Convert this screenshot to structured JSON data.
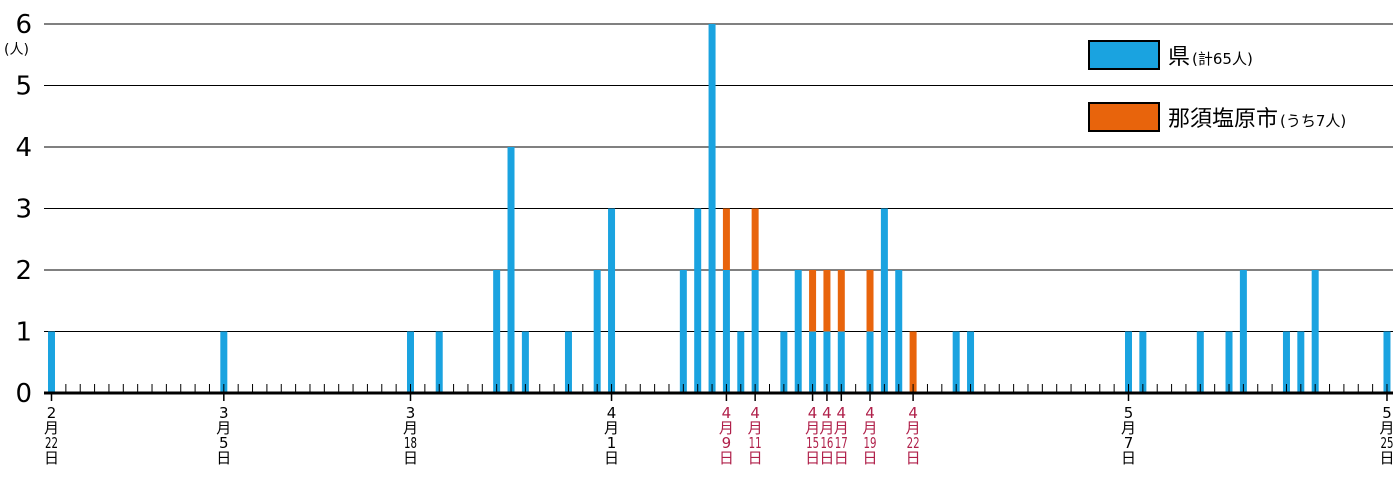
{
  "colors": {
    "prefecture": "#1aa3e0",
    "city": "#e8640c",
    "axis": "#000000",
    "grid": "#000000",
    "label_default": "#000000",
    "label_highlight": "#b0204a"
  },
  "legend": [
    {
      "name": "県",
      "sub": "(計65人)",
      "color": "#1aa3e0"
    },
    {
      "name": "那須塩原市",
      "sub": "(うち7人)",
      "color": "#e8640c"
    }
  ],
  "chart_data": {
    "type": "bar",
    "stacked": true,
    "ylabel": "(人)",
    "ylim": [
      0,
      6
    ],
    "yticks": [
      "0",
      "1",
      "2",
      "3",
      "4",
      "5",
      "6"
    ],
    "grid": true,
    "legend_position": "top-right",
    "x_start": "2月22日",
    "x_end": "5月25日",
    "series": [
      {
        "name": "県",
        "points": [
          [
            0,
            1
          ],
          [
            12,
            1
          ],
          [
            25,
            1
          ],
          [
            27,
            1
          ],
          [
            31,
            2
          ],
          [
            32,
            4
          ],
          [
            33,
            1
          ],
          [
            36,
            1
          ],
          [
            38,
            2
          ],
          [
            39,
            3
          ],
          [
            44,
            2
          ],
          [
            45,
            3
          ],
          [
            46,
            6
          ],
          [
            47,
            2
          ],
          [
            48,
            1
          ],
          [
            49,
            2
          ],
          [
            51,
            1
          ],
          [
            52,
            2
          ],
          [
            53,
            1
          ],
          [
            54,
            1
          ],
          [
            55,
            1
          ],
          [
            57,
            1
          ],
          [
            58,
            3
          ],
          [
            59,
            2
          ],
          [
            63,
            1
          ],
          [
            64,
            1
          ],
          [
            75,
            1
          ],
          [
            76,
            1
          ],
          [
            80,
            1
          ],
          [
            82,
            1
          ],
          [
            83,
            2
          ],
          [
            86,
            1
          ],
          [
            87,
            1
          ],
          [
            88,
            2
          ],
          [
            93,
            1
          ]
        ]
      },
      {
        "name": "那須塩原市",
        "points": [
          [
            47,
            1
          ],
          [
            49,
            1
          ],
          [
            53,
            1
          ],
          [
            54,
            1
          ],
          [
            55,
            1
          ],
          [
            57,
            1
          ],
          [
            60,
            1
          ]
        ]
      }
    ],
    "x_labels": [
      {
        "pos": 0,
        "lines": [
          "2",
          "月",
          "22",
          "日"
        ],
        "highlight": false
      },
      {
        "pos": 12,
        "lines": [
          "3",
          "月",
          "5",
          "日"
        ],
        "highlight": false
      },
      {
        "pos": 25,
        "lines": [
          "3",
          "月",
          "18",
          "日"
        ],
        "highlight": false
      },
      {
        "pos": 39,
        "lines": [
          "4",
          "月",
          "1",
          "日"
        ],
        "highlight": false
      },
      {
        "pos": 47,
        "lines": [
          "4",
          "月",
          "9",
          "日"
        ],
        "highlight": true
      },
      {
        "pos": 49,
        "lines": [
          "4",
          "月",
          "11",
          "日"
        ],
        "highlight": true
      },
      {
        "pos": 53,
        "lines": [
          "4",
          "月",
          "15",
          "日"
        ],
        "highlight": true
      },
      {
        "pos": 54,
        "lines": [
          "4",
          "月",
          "16",
          "日"
        ],
        "highlight": true
      },
      {
        "pos": 55,
        "lines": [
          "4",
          "月",
          "17",
          "日"
        ],
        "highlight": true
      },
      {
        "pos": 57,
        "lines": [
          "4",
          "月",
          "19",
          "日"
        ],
        "highlight": true
      },
      {
        "pos": 60,
        "lines": [
          "4",
          "月",
          "22",
          "日"
        ],
        "highlight": true
      },
      {
        "pos": 75,
        "lines": [
          "5",
          "月",
          "7",
          "日"
        ],
        "highlight": false
      },
      {
        "pos": 93,
        "lines": [
          "5",
          "月",
          "25",
          "日"
        ],
        "highlight": false
      }
    ]
  }
}
